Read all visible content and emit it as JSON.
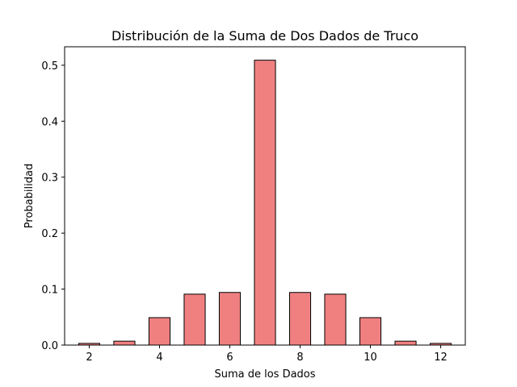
{
  "chart_data": {
    "type": "bar",
    "title": "Distribución de la Suma de Dos Dados de Truco",
    "xlabel": "Suma de los Dados",
    "ylabel": "Probabilidad",
    "categories": [
      2,
      3,
      4,
      5,
      6,
      7,
      8,
      9,
      10,
      11,
      12
    ],
    "values": [
      0.003,
      0.007,
      0.049,
      0.091,
      0.094,
      0.509,
      0.094,
      0.091,
      0.049,
      0.007,
      0.003
    ],
    "xlim": [
      1.3,
      12.7
    ],
    "ylim": [
      0,
      0.533
    ],
    "xticks": [
      2,
      4,
      6,
      8,
      10,
      12
    ],
    "yticks": [
      0.0,
      0.1,
      0.2,
      0.3,
      0.4,
      0.5
    ],
    "ytick_labels": [
      "0.0",
      "0.1",
      "0.2",
      "0.3",
      "0.4",
      "0.5"
    ],
    "bar_width": 0.6,
    "grid": false,
    "colors": {
      "bar_fill": "#f08080",
      "bar_edge": "#000000",
      "axis": "#000000"
    }
  }
}
